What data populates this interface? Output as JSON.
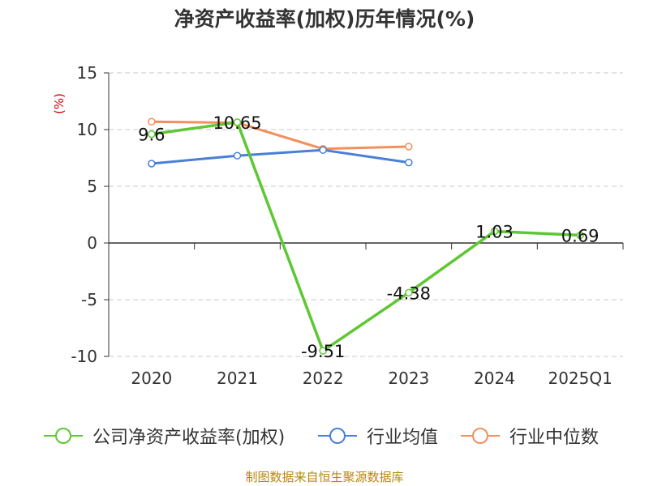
{
  "title": "净资产收益率(加权)历年情况(%)",
  "source": "制图数据来自恒生聚源数据库",
  "colors": {
    "company": "#5ec734",
    "industry_avg": "#4a7fd6",
    "industry_median": "#f28f5c",
    "ylabel": "#cc0000",
    "source": "#b8860b"
  },
  "chart_data": {
    "type": "line",
    "title": "净资产收益率(加权)历年情况(%)",
    "ylabel": "(%)",
    "xlabel": "",
    "categories": [
      "2020",
      "2021",
      "2022",
      "2023",
      "2024",
      "2025Q1"
    ],
    "ylim": [
      -10,
      15
    ],
    "yticks": [
      15,
      10,
      5,
      0,
      -5,
      -10
    ],
    "grid": "horizontal dashed",
    "legend_position": "bottom",
    "series": [
      {
        "name": "公司净资产收益率(加权)",
        "values": [
          9.6,
          10.65,
          -9.51,
          -4.38,
          1.03,
          0.69
        ],
        "labels": [
          "9.6",
          "10.65",
          "-9.51",
          "-4.38",
          "1.03",
          "0.69"
        ]
      },
      {
        "name": "行业均值",
        "values": [
          7.0,
          7.7,
          8.2,
          7.1,
          null,
          null
        ]
      },
      {
        "name": "行业中位数",
        "values": [
          10.7,
          10.6,
          8.3,
          8.5,
          null,
          null
        ]
      }
    ]
  }
}
